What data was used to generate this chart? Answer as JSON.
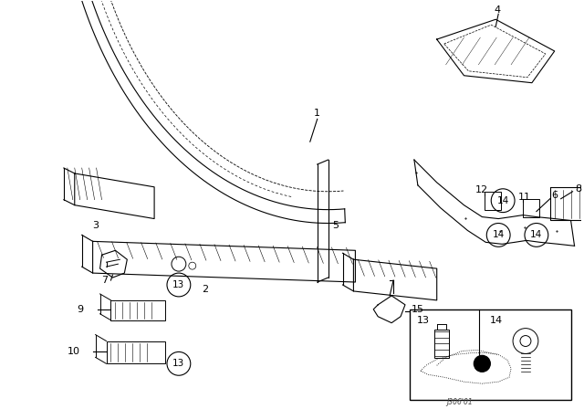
{
  "bg_color": "#ffffff",
  "fig_width": 6.4,
  "fig_height": 4.48,
  "dpi": 100,
  "line_color": "#000000",
  "watermark": "J306'01"
}
